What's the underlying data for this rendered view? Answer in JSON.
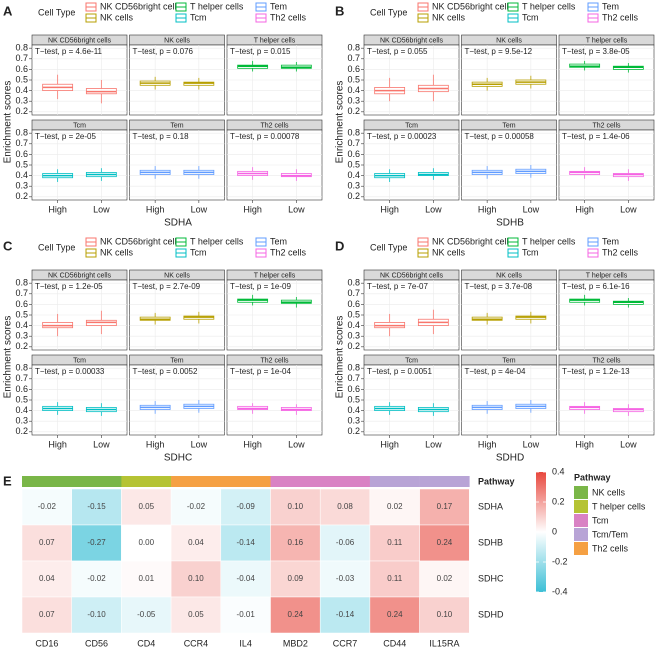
{
  "chart_data": [
    {
      "type": "box",
      "label": "A",
      "legend_title": "Cell Type",
      "xlabel": "SDHA",
      "ylabel": "Enrichment scores",
      "categories": [
        "High",
        "Low"
      ],
      "ylim": [
        0.17,
        0.83
      ],
      "yticks": [
        0.2,
        0.3,
        0.4,
        0.5,
        0.6,
        0.7,
        0.8
      ],
      "grid": true,
      "series": [
        {
          "name": "NK CD56bright cells",
          "color": "#f8766d",
          "annotation": "T−test, p = 4.6e-11",
          "values": [
            [
              0.32,
              0.4,
              0.43,
              0.46,
              0.55
            ],
            [
              0.28,
              0.37,
              0.39,
              0.42,
              0.5
            ]
          ]
        },
        {
          "name": "NK cells",
          "color": "#b79f00",
          "annotation": "T−test, p = 0.076",
          "values": [
            [
              0.41,
              0.45,
              0.47,
              0.49,
              0.53
            ],
            [
              0.41,
              0.45,
              0.47,
              0.48,
              0.52
            ]
          ]
        },
        {
          "name": "T helper cells",
          "color": "#00ba38",
          "annotation": "T−test, p = 0.015",
          "values": [
            [
              0.58,
              0.61,
              0.63,
              0.64,
              0.68
            ],
            [
              0.58,
              0.61,
              0.62,
              0.64,
              0.67
            ]
          ]
        },
        {
          "name": "Tcm",
          "color": "#00bfc4",
          "annotation": "T−test, p = 2e-05",
          "values": [
            [
              0.34,
              0.38,
              0.4,
              0.42,
              0.46
            ],
            [
              0.35,
              0.39,
              0.41,
              0.43,
              0.47
            ]
          ]
        },
        {
          "name": "Tem",
          "color": "#619cff",
          "annotation": "T−test, p = 0.18",
          "values": [
            [
              0.37,
              0.41,
              0.43,
              0.45,
              0.49
            ],
            [
              0.37,
              0.41,
              0.43,
              0.45,
              0.49
            ]
          ]
        },
        {
          "name": "Th2 cells",
          "color": "#f564e3",
          "annotation": "T−test, p = 0.00078",
          "values": [
            [
              0.36,
              0.4,
              0.42,
              0.44,
              0.48
            ],
            [
              0.35,
              0.39,
              0.4,
              0.42,
              0.46
            ]
          ]
        }
      ]
    },
    {
      "type": "box",
      "label": "B",
      "legend_title": "Cell Type",
      "xlabel": "SDHB",
      "ylabel": "Enrichment scores",
      "categories": [
        "High",
        "Low"
      ],
      "ylim": [
        0.17,
        0.83
      ],
      "yticks": [
        0.2,
        0.3,
        0.4,
        0.5,
        0.6,
        0.7,
        0.8
      ],
      "grid": true,
      "series": [
        {
          "name": "NK CD56bright cells",
          "color": "#f8766d",
          "annotation": "T−test, p = 0.055",
          "values": [
            [
              0.3,
              0.37,
              0.4,
              0.43,
              0.52
            ],
            [
              0.3,
              0.39,
              0.42,
              0.45,
              0.55
            ]
          ]
        },
        {
          "name": "NK cells",
          "color": "#b79f00",
          "annotation": "T−test, p = 9.5e-12",
          "values": [
            [
              0.4,
              0.44,
              0.46,
              0.48,
              0.52
            ],
            [
              0.42,
              0.46,
              0.48,
              0.5,
              0.54
            ]
          ]
        },
        {
          "name": "T helper cells",
          "color": "#00ba38",
          "annotation": "T−test, p = 3.8e-05",
          "values": [
            [
              0.59,
              0.62,
              0.63,
              0.65,
              0.68
            ],
            [
              0.57,
              0.6,
              0.62,
              0.63,
              0.66
            ]
          ]
        },
        {
          "name": "Tcm",
          "color": "#00bfc4",
          "annotation": "T−test, p = 0.00023",
          "values": [
            [
              0.34,
              0.38,
              0.4,
              0.42,
              0.46
            ],
            [
              0.36,
              0.4,
              0.41,
              0.43,
              0.47
            ]
          ]
        },
        {
          "name": "Tem",
          "color": "#619cff",
          "annotation": "T−test, p = 0.00058",
          "values": [
            [
              0.37,
              0.41,
              0.43,
              0.45,
              0.49
            ],
            [
              0.38,
              0.42,
              0.44,
              0.46,
              0.5
            ]
          ]
        },
        {
          "name": "Th2 cells",
          "color": "#f564e3",
          "annotation": "T−test, p = 1.4e-06",
          "values": [
            [
              0.37,
              0.41,
              0.43,
              0.44,
              0.48
            ],
            [
              0.35,
              0.39,
              0.41,
              0.42,
              0.46
            ]
          ]
        }
      ]
    },
    {
      "type": "box",
      "label": "C",
      "legend_title": "Cell Type",
      "xlabel": "SDHC",
      "ylabel": "Enrichment scores",
      "categories": [
        "High",
        "Low"
      ],
      "ylim": [
        0.17,
        0.83
      ],
      "yticks": [
        0.2,
        0.3,
        0.4,
        0.5,
        0.6,
        0.7,
        0.8
      ],
      "grid": true,
      "series": [
        {
          "name": "NK CD56bright cells",
          "color": "#f8766d",
          "annotation": "T−test, p = 1.2e-05",
          "values": [
            [
              0.3,
              0.38,
              0.4,
              0.43,
              0.51
            ],
            [
              0.32,
              0.4,
              0.43,
              0.45,
              0.54
            ]
          ]
        },
        {
          "name": "NK cells",
          "color": "#b79f00",
          "annotation": "T−test, p = 2.7e-09",
          "values": [
            [
              0.41,
              0.45,
              0.46,
              0.48,
              0.52
            ],
            [
              0.42,
              0.46,
              0.48,
              0.49,
              0.53
            ]
          ]
        },
        {
          "name": "T helper cells",
          "color": "#00ba38",
          "annotation": "T−test, p = 1e-09",
          "values": [
            [
              0.59,
              0.62,
              0.64,
              0.65,
              0.69
            ],
            [
              0.57,
              0.61,
              0.62,
              0.64,
              0.67
            ]
          ]
        },
        {
          "name": "Tcm",
          "color": "#00bfc4",
          "annotation": "T−test, p = 0.00033",
          "values": [
            [
              0.36,
              0.4,
              0.42,
              0.44,
              0.48
            ],
            [
              0.35,
              0.39,
              0.41,
              0.43,
              0.47
            ]
          ]
        },
        {
          "name": "Tem",
          "color": "#619cff",
          "annotation": "T−test, p = 0.0052",
          "values": [
            [
              0.37,
              0.41,
              0.43,
              0.45,
              0.49
            ],
            [
              0.38,
              0.42,
              0.44,
              0.46,
              0.5
            ]
          ]
        },
        {
          "name": "Th2 cells",
          "color": "#f564e3",
          "annotation": "T−test, p = 1e-04",
          "values": [
            [
              0.37,
              0.41,
              0.42,
              0.44,
              0.47
            ],
            [
              0.36,
              0.4,
              0.41,
              0.43,
              0.46
            ]
          ]
        }
      ]
    },
    {
      "type": "box",
      "label": "D",
      "legend_title": "Cell Type",
      "xlabel": "SDHD",
      "ylabel": "Enrichment scores",
      "categories": [
        "High",
        "Low"
      ],
      "ylim": [
        0.17,
        0.83
      ],
      "yticks": [
        0.2,
        0.3,
        0.4,
        0.5,
        0.6,
        0.7,
        0.8
      ],
      "grid": true,
      "series": [
        {
          "name": "NK CD56bright cells",
          "color": "#f8766d",
          "annotation": "T−test, p = 7e-07",
          "values": [
            [
              0.3,
              0.38,
              0.4,
              0.43,
              0.51
            ],
            [
              0.32,
              0.4,
              0.43,
              0.46,
              0.55
            ]
          ]
        },
        {
          "name": "NK cells",
          "color": "#b79f00",
          "annotation": "T−test, p = 3.7e-08",
          "values": [
            [
              0.41,
              0.45,
              0.46,
              0.48,
              0.52
            ],
            [
              0.42,
              0.46,
              0.48,
              0.49,
              0.53
            ]
          ]
        },
        {
          "name": "T helper cells",
          "color": "#00ba38",
          "annotation": "T−test, p = 6.1e-16",
          "values": [
            [
              0.59,
              0.62,
              0.64,
              0.65,
              0.69
            ],
            [
              0.57,
              0.6,
              0.62,
              0.63,
              0.66
            ]
          ]
        },
        {
          "name": "Tcm",
          "color": "#00bfc4",
          "annotation": "T−test, p = 0.0051",
          "values": [
            [
              0.36,
              0.4,
              0.42,
              0.44,
              0.48
            ],
            [
              0.35,
              0.39,
              0.41,
              0.43,
              0.47
            ]
          ]
        },
        {
          "name": "Tem",
          "color": "#619cff",
          "annotation": "T−test, p = 4e-04",
          "values": [
            [
              0.37,
              0.41,
              0.43,
              0.45,
              0.49
            ],
            [
              0.38,
              0.42,
              0.44,
              0.46,
              0.5
            ]
          ]
        },
        {
          "name": "Th2 cells",
          "color": "#f564e3",
          "annotation": "T−test, p = 1.2e-13",
          "values": [
            [
              0.37,
              0.41,
              0.43,
              0.44,
              0.48
            ],
            [
              0.35,
              0.39,
              0.41,
              0.42,
              0.46
            ]
          ]
        }
      ]
    },
    {
      "type": "heatmap",
      "label": "E",
      "annotation_title": "Pathway",
      "columns": [
        "CD16",
        "CD56",
        "CD4",
        "CCR4",
        "IL4",
        "MBD2",
        "CCR7",
        "CD44",
        "IL15RA"
      ],
      "column_pathways": [
        "NK cells",
        "NK cells",
        "T helper cells",
        "Th2 cells",
        "Th2 cells",
        "Tcm",
        "Tcm",
        "Tcm/Tem",
        "Tcm/Tem"
      ],
      "rows": [
        "SDHA",
        "SDHB",
        "SDHC",
        "SDHD"
      ],
      "values": [
        [
          -0.02,
          -0.15,
          0.05,
          -0.02,
          -0.09,
          0.1,
          0.08,
          0.02,
          0.17
        ],
        [
          0.07,
          -0.27,
          0.0,
          0.04,
          -0.14,
          0.16,
          -0.06,
          0.11,
          0.24
        ],
        [
          0.04,
          -0.02,
          0.01,
          0.1,
          -0.04,
          0.09,
          -0.03,
          0.11,
          0.02
        ],
        [
          0.07,
          -0.1,
          -0.05,
          0.05,
          -0.01,
          0.24,
          -0.14,
          0.24,
          0.1
        ]
      ],
      "value_labels": [
        [
          "-0.02",
          "-0.15",
          "0.05",
          "-0.02",
          "-0.09",
          "0.10",
          "0.08",
          "0.02",
          "0.17"
        ],
        [
          "0.07",
          "-0.27",
          "0.00",
          "0.04",
          "-0.14",
          "0.16",
          "-0.06",
          "0.11",
          "0.24"
        ],
        [
          "0.04",
          "-0.02",
          "0.01",
          "0.10",
          "-0.04",
          "0.09",
          "-0.03",
          "0.11",
          "0.02"
        ],
        [
          "0.07",
          "-0.10",
          "-0.05",
          "0.05",
          "-0.01",
          "0.24",
          "-0.14",
          "0.24",
          "0.10"
        ]
      ],
      "colorbar": {
        "lim": [
          -0.4,
          0.4
        ],
        "ticks": [
          0.4,
          0.2,
          0,
          -0.2,
          -0.4
        ],
        "low_color": "#3cbfd6",
        "high_color": "#e8473d"
      },
      "pathway_legend": {
        "title": "Pathway",
        "items": [
          {
            "name": "NK cells",
            "color": "#7ab648"
          },
          {
            "name": "T helper cells",
            "color": "#b5c334"
          },
          {
            "name": "Tcm",
            "color": "#d982c4"
          },
          {
            "name": "Tcm/Tem",
            "color": "#b8a4d6"
          },
          {
            "name": "Th2 cells",
            "color": "#f5a043"
          }
        ]
      }
    }
  ]
}
